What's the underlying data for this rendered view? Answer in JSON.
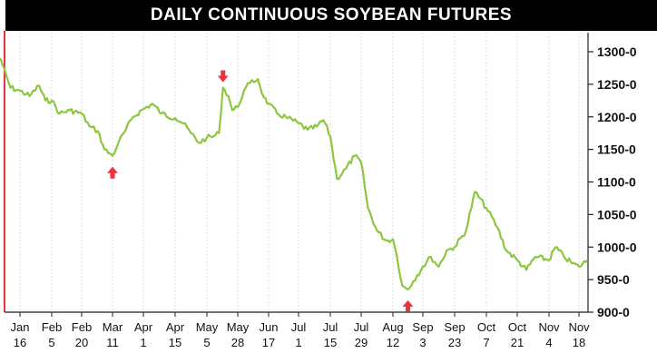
{
  "chart_data": {
    "type": "line",
    "title": "DAILY CONTINUOUS SOYBEAN FUTURES",
    "xlabel": "",
    "ylabel": "",
    "ylim": [
      900,
      1310
    ],
    "yticks": [
      {
        "value": 900,
        "label": "900-0"
      },
      {
        "value": 950,
        "label": "950-0"
      },
      {
        "value": 1000,
        "label": "1000-0"
      },
      {
        "value": 1050,
        "label": "1050-0"
      },
      {
        "value": 1100,
        "label": "1100-0"
      },
      {
        "value": 1150,
        "label": "1150-0"
      },
      {
        "value": 1200,
        "label": "1200-0"
      },
      {
        "value": 1250,
        "label": "1250-0"
      },
      {
        "value": 1300,
        "label": "1300-0"
      }
    ],
    "xticks": [
      {
        "month": "Jan",
        "day": "16"
      },
      {
        "month": "Feb",
        "day": "5"
      },
      {
        "month": "Feb",
        "day": "20"
      },
      {
        "month": "Mar",
        "day": "11"
      },
      {
        "month": "Apr",
        "day": "1"
      },
      {
        "month": "Apr",
        "day": "15"
      },
      {
        "month": "May",
        "day": "5"
      },
      {
        "month": "May",
        "day": "28"
      },
      {
        "month": "Jun",
        "day": "17"
      },
      {
        "month": "Jul",
        "day": "1"
      },
      {
        "month": "Jul",
        "day": "15"
      },
      {
        "month": "Jul",
        "day": "29"
      },
      {
        "month": "Aug",
        "day": "12"
      },
      {
        "month": "Sep",
        "day": "3"
      },
      {
        "month": "Sep",
        "day": "23"
      },
      {
        "month": "Oct",
        "day": "7"
      },
      {
        "month": "Oct",
        "day": "21"
      },
      {
        "month": "Nov",
        "day": "4"
      },
      {
        "month": "Nov",
        "day": "18"
      }
    ],
    "grid": {
      "vertical": true,
      "horizontal": false
    },
    "series": [
      {
        "color": "#8dc63f",
        "points": [
          {
            "x": "Jan 1",
            "y": 1300
          },
          {
            "x": "Jan 5",
            "y": 1280
          },
          {
            "x": "Jan 10",
            "y": 1245
          },
          {
            "x": "Jan 16",
            "y": 1240
          },
          {
            "x": "Jan 22",
            "y": 1232
          },
          {
            "x": "Jan 28",
            "y": 1248
          },
          {
            "x": "Feb 1",
            "y": 1225
          },
          {
            "x": "Feb 5",
            "y": 1225
          },
          {
            "x": "Feb 9",
            "y": 1205
          },
          {
            "x": "Feb 14",
            "y": 1210
          },
          {
            "x": "Feb 20",
            "y": 1205
          },
          {
            "x": "Feb 25",
            "y": 1185
          },
          {
            "x": "Mar 2",
            "y": 1178
          },
          {
            "x": "Mar 6",
            "y": 1150
          },
          {
            "x": "Mar 11",
            "y": 1140
          },
          {
            "x": "Mar 15",
            "y": 1160
          },
          {
            "x": "Mar 20",
            "y": 1180
          },
          {
            "x": "Mar 25",
            "y": 1200
          },
          {
            "x": "Apr 1",
            "y": 1212
          },
          {
            "x": "Apr 5",
            "y": 1220
          },
          {
            "x": "Apr 9",
            "y": 1205
          },
          {
            "x": "Apr 15",
            "y": 1198
          },
          {
            "x": "Apr 20",
            "y": 1190
          },
          {
            "x": "Apr 25",
            "y": 1175
          },
          {
            "x": "Apr 30",
            "y": 1160
          },
          {
            "x": "May 5",
            "y": 1168
          },
          {
            "x": "May 10",
            "y": 1170
          },
          {
            "x": "May 14",
            "y": 1175
          },
          {
            "x": "May 17",
            "y": 1245
          },
          {
            "x": "May 21",
            "y": 1232
          },
          {
            "x": "May 24",
            "y": 1210
          },
          {
            "x": "May 28",
            "y": 1215
          },
          {
            "x": "Jun 1",
            "y": 1240
          },
          {
            "x": "Jun 5",
            "y": 1252
          },
          {
            "x": "Jun 10",
            "y": 1258
          },
          {
            "x": "Jun 14",
            "y": 1230
          },
          {
            "x": "Jun 17",
            "y": 1220
          },
          {
            "x": "Jun 21",
            "y": 1205
          },
          {
            "x": "Jun 26",
            "y": 1198
          },
          {
            "x": "Jul 1",
            "y": 1190
          },
          {
            "x": "Jul 5",
            "y": 1180
          },
          {
            "x": "Jul 9",
            "y": 1185
          },
          {
            "x": "Jul 12",
            "y": 1195
          },
          {
            "x": "Jul 15",
            "y": 1170
          },
          {
            "x": "Jul 18",
            "y": 1105
          },
          {
            "x": "Jul 22",
            "y": 1120
          },
          {
            "x": "Jul 26",
            "y": 1140
          },
          {
            "x": "Jul 29",
            "y": 1130
          },
          {
            "x": "Aug 1",
            "y": 1060
          },
          {
            "x": "Aug 5",
            "y": 1025
          },
          {
            "x": "Aug 9",
            "y": 1010
          },
          {
            "x": "Aug 12",
            "y": 1012
          },
          {
            "x": "Aug 15",
            "y": 985
          },
          {
            "x": "Aug 19",
            "y": 940
          },
          {
            "x": "Aug 23",
            "y": 935
          },
          {
            "x": "Aug 27",
            "y": 948
          },
          {
            "x": "Sep 3",
            "y": 970
          },
          {
            "x": "Sep 8",
            "y": 985
          },
          {
            "x": "Sep 13",
            "y": 970
          },
          {
            "x": "Sep 18",
            "y": 995
          },
          {
            "x": "Sep 23",
            "y": 1000
          },
          {
            "x": "Sep 28",
            "y": 1025
          },
          {
            "x": "Oct 2",
            "y": 1085
          },
          {
            "x": "Oct 7",
            "y": 1060
          },
          {
            "x": "Oct 12",
            "y": 1030
          },
          {
            "x": "Oct 16",
            "y": 995
          },
          {
            "x": "Oct 21",
            "y": 980
          },
          {
            "x": "Oct 25",
            "y": 965
          },
          {
            "x": "Oct 29",
            "y": 985
          },
          {
            "x": "Nov 4",
            "y": 980
          },
          {
            "x": "Nov 7",
            "y": 1000
          },
          {
            "x": "Nov 11",
            "y": 985
          },
          {
            "x": "Nov 15",
            "y": 975
          },
          {
            "x": "Nov 18",
            "y": 970
          },
          {
            "x": "Nov 22",
            "y": 980
          }
        ]
      }
    ],
    "annotations": [
      {
        "kind": "up-arrow",
        "x": "Mar 11",
        "y": 1140,
        "color": "#e8343c"
      },
      {
        "kind": "down-arrow",
        "x": "May 17",
        "y": 1245,
        "color": "#e8343c"
      },
      {
        "kind": "up-arrow",
        "x": "Aug 23",
        "y": 935,
        "color": "#e8343c"
      }
    ]
  }
}
